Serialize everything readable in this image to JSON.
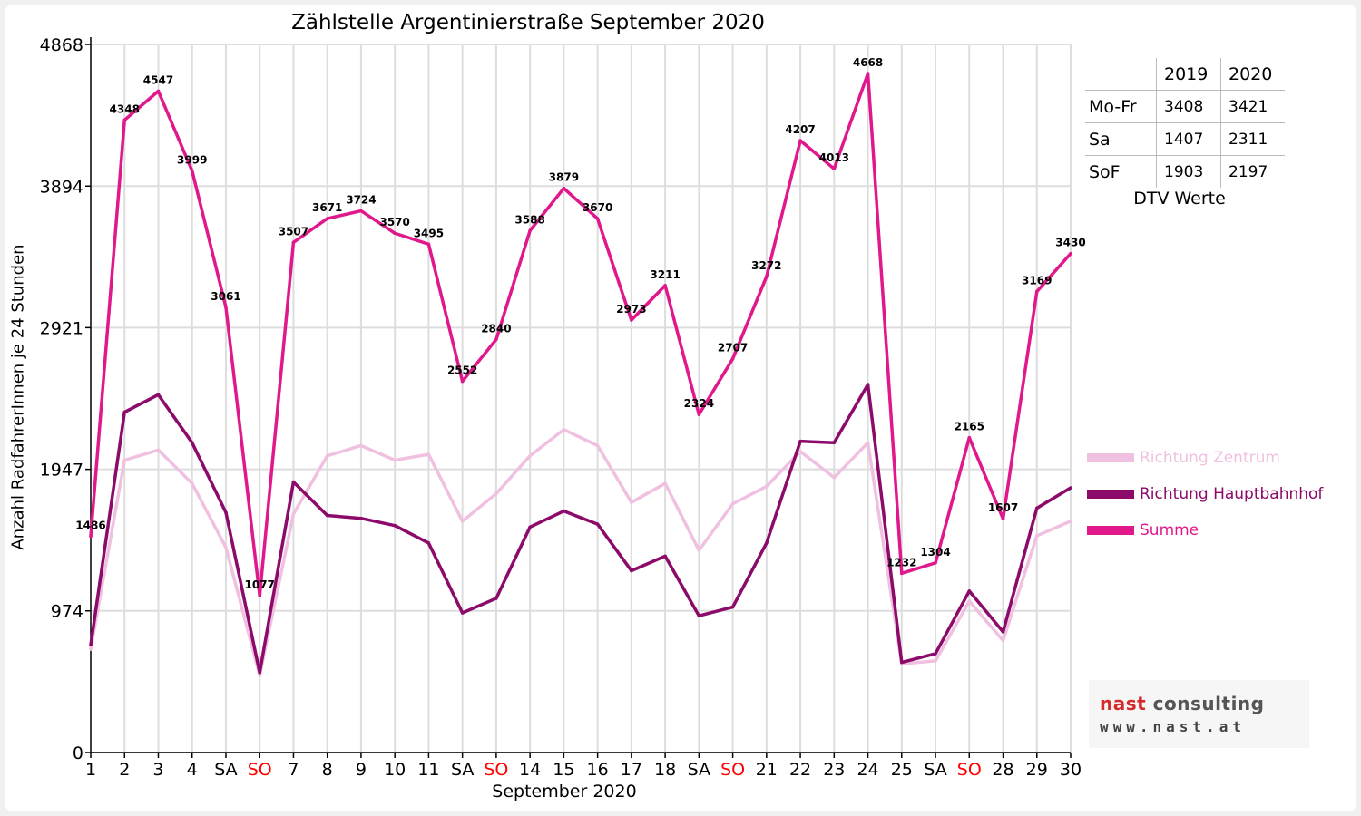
{
  "chart_data": {
    "type": "line",
    "title": "Zählstelle Argentinierstraße September 2020",
    "xlabel": "September 2020",
    "ylabel": "Anzahl RadfahrerInnen je 24 Stunden",
    "ylim": [
      0,
      4868
    ],
    "yticks": [
      0,
      974,
      1947,
      2921,
      3894,
      4868
    ],
    "categories": [
      "1",
      "2",
      "3",
      "4",
      "SA",
      "SO",
      "7",
      "8",
      "9",
      "10",
      "11",
      "SA",
      "SO",
      "14",
      "15",
      "16",
      "17",
      "18",
      "SA",
      "SO",
      "21",
      "22",
      "23",
      "24",
      "25",
      "SA",
      "SO",
      "28",
      "29",
      "30"
    ],
    "weekend_color": "#ff0000",
    "grid": true,
    "legend_position": "right",
    "series": [
      {
        "name": "Richtung Zentrum",
        "color": "#f0c0e0",
        "values": [
          710,
          2010,
          2080,
          1850,
          1410,
          530,
          1640,
          2040,
          2110,
          2010,
          2050,
          1590,
          1780,
          2040,
          2220,
          2110,
          1720,
          1850,
          1390,
          1710,
          1830,
          2070,
          1890,
          2130,
          610,
          630,
          1040,
          770,
          1490,
          1590
        ]
      },
      {
        "name": "Richtung Hauptbahnhof",
        "color": "#8b0a6a",
        "values": [
          740,
          2340,
          2460,
          2130,
          1650,
          550,
          1860,
          1630,
          1610,
          1560,
          1440,
          960,
          1060,
          1550,
          1660,
          1570,
          1250,
          1350,
          940,
          1000,
          1440,
          2140,
          2130,
          2530,
          620,
          680,
          1110,
          830,
          1680,
          1820
        ]
      },
      {
        "name": "Summe",
        "color": "#e0188c",
        "values": [
          1486,
          4348,
          4547,
          3999,
          3061,
          1077,
          3507,
          3671,
          3724,
          3570,
          3495,
          2552,
          2840,
          3588,
          3879,
          3670,
          2973,
          3211,
          2324,
          2707,
          3272,
          4207,
          4013,
          4668,
          1232,
          1304,
          2165,
          1607,
          3169,
          3430
        ],
        "data_labels": true
      }
    ]
  },
  "dtv_table": {
    "years": [
      "2019",
      "2020"
    ],
    "rows": [
      {
        "label": "Mo-Fr",
        "v2019": "3408",
        "v2020": "3421"
      },
      {
        "label": "Sa",
        "v2019": "1407",
        "v2020": "2311"
      },
      {
        "label": "SoF",
        "v2019": "1903",
        "v2020": "2197"
      }
    ],
    "caption": "DTV Werte"
  },
  "logo": {
    "word1": "nast",
    "word2": "consulting",
    "url": "www.nast.at",
    "color_primary": "#d42a2a",
    "color_secondary": "#555555"
  }
}
